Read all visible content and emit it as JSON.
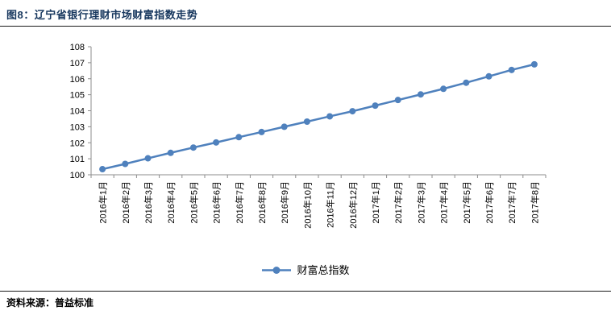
{
  "header": {
    "title": "图8：辽宁省银行理财市场财富指数走势"
  },
  "legend": {
    "label": "财富总指数"
  },
  "footer": {
    "source": "资料来源：普益标准"
  },
  "colors": {
    "series": "#4F81BD",
    "title": "#17375E",
    "axis": "#8C8C8C",
    "text": "#000000"
  },
  "chart_data": {
    "type": "line",
    "title": "图8：辽宁省银行理财市场财富指数走势",
    "xlabel": "",
    "ylabel": "",
    "ylim": [
      100,
      108
    ],
    "ytick_step": 1,
    "grid": false,
    "legend_position": "bottom",
    "categories": [
      "2016年1月",
      "2016年2月",
      "2016年3月",
      "2016年4月",
      "2016年5月",
      "2016年6月",
      "2016年7月",
      "2016年8月",
      "2016年9月",
      "2016年10月",
      "2016年11月",
      "2016年12月",
      "2017年1月",
      "2017年2月",
      "2017年3月",
      "2017年4月",
      "2017年5月",
      "2017年6月",
      "2017年7月",
      "2017年8月"
    ],
    "series": [
      {
        "name": "财富总指数",
        "values": [
          100.35,
          100.68,
          101.03,
          101.37,
          101.7,
          102.02,
          102.35,
          102.67,
          103.0,
          103.32,
          103.65,
          103.97,
          104.32,
          104.67,
          105.02,
          105.37,
          105.75,
          106.15,
          106.55,
          106.9
        ]
      }
    ]
  }
}
